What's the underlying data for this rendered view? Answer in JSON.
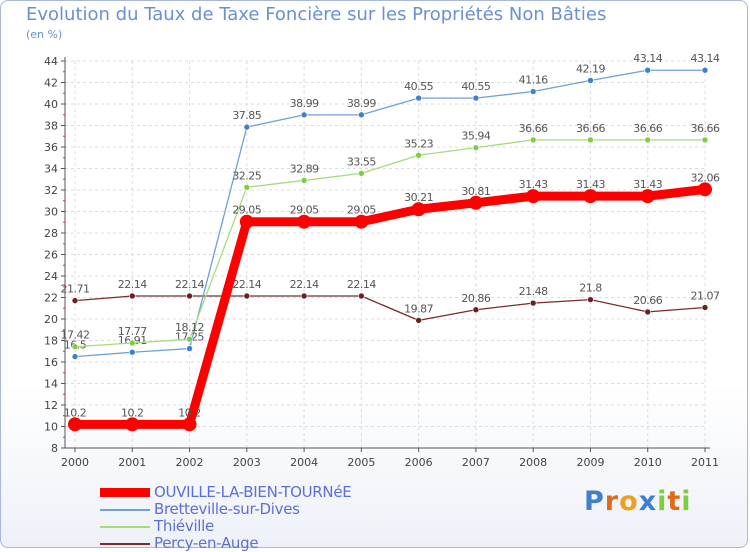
{
  "chart_data": {
    "type": "line",
    "title": "Evolution du Taux de Taxe Foncière sur les Propriétés Non Bâties",
    "ylabel_unit": "(en %)",
    "categories": [
      "2000",
      "2001",
      "2002",
      "2003",
      "2004",
      "2005",
      "2006",
      "2007",
      "2008",
      "2009",
      "2010",
      "2011"
    ],
    "ylim": [
      8,
      44
    ],
    "yticks": [
      8,
      10,
      12,
      14,
      16,
      18,
      20,
      22,
      24,
      26,
      28,
      30,
      32,
      34,
      36,
      38,
      40,
      42,
      44
    ],
    "grid": true,
    "series": [
      {
        "name": "Percy-en-Auge",
        "color": "#7a2a2a",
        "marker": "#6b1f1f",
        "values": [
          21.71,
          22.14,
          22.14,
          22.14,
          22.14,
          22.14,
          19.87,
          20.86,
          21.48,
          21.8,
          20.66,
          21.07
        ],
        "labels": [
          "21.71",
          "22.14",
          "22.14",
          "22.14",
          "22.14",
          "22.14",
          "19.87",
          "20.86",
          "21.48",
          "21.8",
          "20.66",
          "21.07"
        ]
      },
      {
        "name": "Bretteville-sur-Dives",
        "color": "#6fa0d6",
        "marker": "#3f7fd0",
        "values": [
          16.5,
          16.91,
          17.25,
          37.85,
          38.99,
          38.99,
          40.55,
          40.55,
          41.16,
          42.19,
          43.14,
          43.14
        ],
        "labels": [
          "16.5",
          "16.91",
          "17.25",
          "37.85",
          "38.99",
          "38.99",
          "40.55",
          "40.55",
          "41.16",
          "42.19",
          "43.14",
          "43.14"
        ]
      },
      {
        "name": "Thiéville",
        "color": "#a5dc7a",
        "marker": "#7ccf3f",
        "values": [
          17.42,
          17.77,
          18.12,
          32.25,
          32.89,
          33.55,
          35.23,
          35.94,
          36.66,
          36.66,
          36.66,
          36.66
        ],
        "labels": [
          "17.42",
          "17.77",
          "18.12",
          "32.25",
          "32.89",
          "33.55",
          "35.23",
          "35.94",
          "36.66",
          "36.66",
          "36.66",
          "36.66"
        ]
      },
      {
        "name": "OUVILLE-LA-BIEN-TOURNéE",
        "color": "#ff0000",
        "marker": "#ff0000",
        "values": [
          10.2,
          10.2,
          10.2,
          29.05,
          29.05,
          29.05,
          30.21,
          30.81,
          31.43,
          31.43,
          31.43,
          32.06
        ],
        "labels": [
          "10.2",
          "10.2",
          "10.2",
          "29.05",
          "29.05",
          "29.05",
          "30.21",
          "30.81",
          "31.43",
          "31.43",
          "31.43",
          "32.06"
        ]
      }
    ]
  },
  "legend": {
    "items": [
      {
        "label": "OUVILLE-LA-BIEN-TOURNéE",
        "color": "#ff0000"
      },
      {
        "label": "Bretteville-sur-Dives",
        "color": "#6fa0d6"
      },
      {
        "label": "Thiéville",
        "color": "#a5dc7a"
      },
      {
        "label": "Percy-en-Auge",
        "color": "#7a2a2a"
      }
    ]
  },
  "brand": {
    "letters": [
      "P",
      "r",
      "o",
      "x",
      "i",
      "t",
      "i"
    ],
    "colors": [
      "#3f7fd0",
      "#e06a1b",
      "#f0a020",
      "#3f7fd0",
      "#7ccf3f",
      "#e06a1b",
      "#7ccf3f"
    ]
  }
}
